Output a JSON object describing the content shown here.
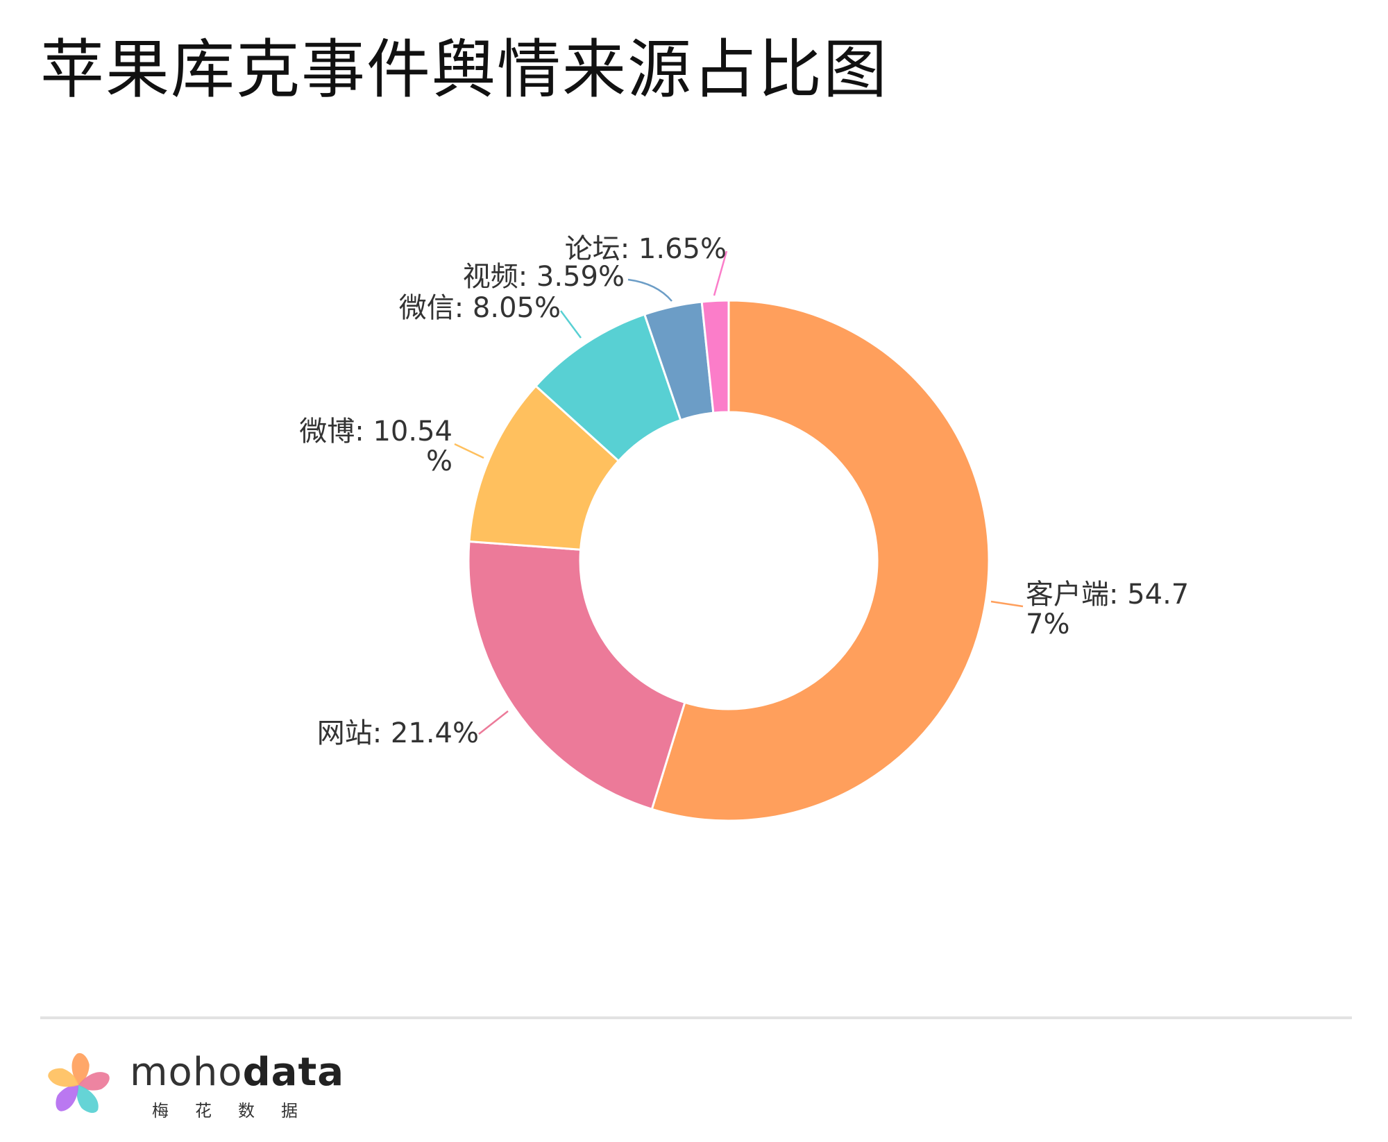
{
  "title": "苹果库克事件舆情来源占比图",
  "chart_data": {
    "type": "pie",
    "variant": "donut",
    "title": "苹果库克事件舆情来源占比图",
    "label_format": "{name}: {value}%",
    "slices": [
      {
        "name": "客户端",
        "value": 54.77,
        "label_lines": [
          "客户端: 54.7",
          "7%"
        ],
        "color": "#FF9F5C"
      },
      {
        "name": "网站",
        "value": 21.4,
        "label_lines": [
          "网站: 21.4%"
        ],
        "color": "#EC7A99"
      },
      {
        "name": "微博",
        "value": 10.54,
        "label_lines": [
          "微博: 10.54",
          "%"
        ],
        "color": "#FFC05E"
      },
      {
        "name": "微信",
        "value": 8.05,
        "label_lines": [
          "微信: 8.05%"
        ],
        "color": "#58D0D3"
      },
      {
        "name": "视频",
        "value": 3.59,
        "label_lines": [
          "视频: 3.59%"
        ],
        "color": "#6C9DC6"
      },
      {
        "name": "论坛",
        "value": 1.65,
        "label_lines": [
          "论坛: 1.65%"
        ],
        "color": "#FB7DC9"
      }
    ],
    "start": "12 o'clock",
    "direction": "clockwise",
    "legend": "none"
  },
  "brand": {
    "name_light": "moho",
    "name_bold": "data",
    "subtitle": "梅花数据",
    "logo_colors": [
      "#FF9F5C",
      "#EC7A99",
      "#58D0D3",
      "#B46CF0",
      "#FFC05E"
    ]
  }
}
